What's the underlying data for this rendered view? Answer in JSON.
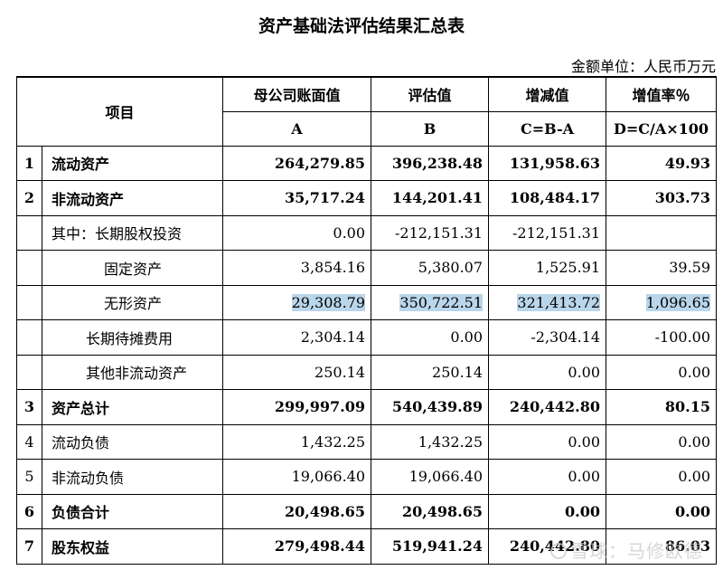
{
  "title": "资产基础法评估结果汇总表",
  "unit": "金额单位：人民币万元",
  "header": {
    "item": "项目",
    "col1": "母公司账面值",
    "col2": "评估值",
    "col3": "增减值",
    "col4": "增值率％",
    "col1_code": "A",
    "col2_code": "B",
    "col3_code": "C=B-A",
    "col4_code": "D=C/A×100"
  },
  "rows": [
    {
      "no": "1",
      "label": "流动资产",
      "a": "264,279.85",
      "b": "396,238.48",
      "c": "131,958.63",
      "d": "49.93"
    },
    {
      "no": "2",
      "label": "非流动资产",
      "a": "35,717.24",
      "b": "144,201.41",
      "c": "108,484.17",
      "d": "303.73"
    },
    {
      "no": "",
      "label": "其中：长期股权投资",
      "a": "0.00",
      "b": "-212,151.31",
      "c": "-212,151.31",
      "d": ""
    },
    {
      "no": "",
      "label": "固定资产",
      "a": "3,854.16",
      "b": "5,380.07",
      "c": "1,525.91",
      "d": "39.59"
    },
    {
      "no": "",
      "label": "无形资产",
      "a": "29,308.79",
      "b": "350,722.51",
      "c": "321,413.72",
      "d": "1,096.65"
    },
    {
      "no": "",
      "label": "长期待摊费用",
      "a": "2,304.14",
      "b": "0.00",
      "c": "-2,304.14",
      "d": "-100.00"
    },
    {
      "no": "",
      "label": "其他非流动资产",
      "a": "250.14",
      "b": "250.14",
      "c": "0.00",
      "d": "0.00"
    },
    {
      "no": "3",
      "label": "资产总计",
      "a": "299,997.09",
      "b": "540,439.89",
      "c": "240,442.80",
      "d": "80.15"
    },
    {
      "no": "4",
      "label": "流动负债",
      "a": "1,432.25",
      "b": "1,432.25",
      "c": "0.00",
      "d": "0.00"
    },
    {
      "no": "5",
      "label": "非流动负债",
      "a": "19,066.40",
      "b": "19,066.40",
      "c": "0.00",
      "d": "0.00"
    },
    {
      "no": "6",
      "label": "负债合计",
      "a": "20,498.65",
      "b": "20,498.65",
      "c": "0.00",
      "d": "0.00"
    },
    {
      "no": "7",
      "label": "股东权益",
      "a": "279,498.44",
      "b": "519,941.24",
      "c": "240,442.80",
      "d": "86.03"
    }
  ],
  "watermark": "雪球：马修欧德"
}
